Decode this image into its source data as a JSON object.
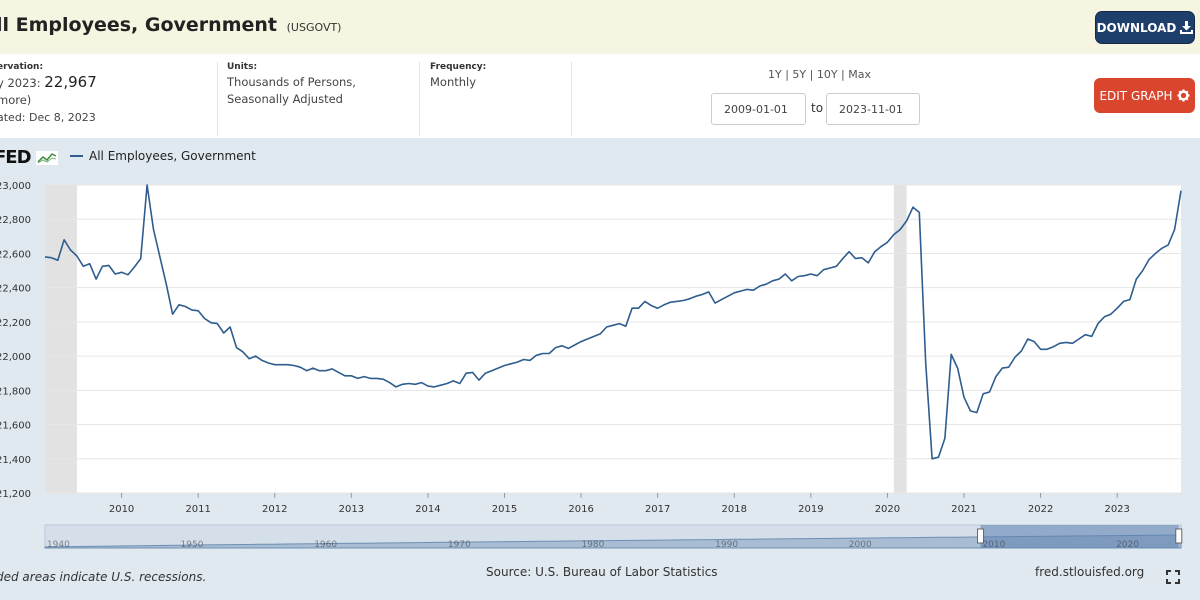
{
  "header": {
    "title": "ll Employees, Government",
    "series_id": "(USGOVT)",
    "download_label": "DOWNLOAD"
  },
  "meta": {
    "observation_label": "ervation:",
    "observation_date": "y 2023:",
    "observation_value": "22,967",
    "more_link": "more)",
    "updated": "ated: Dec 8, 2023",
    "units_label": "Units:",
    "units_line1": "Thousands of Persons,",
    "units_line2": "Seasonally Adjusted",
    "frequency_label": "Frequency:",
    "frequency_value": "Monthly"
  },
  "controls": {
    "range_1y": "1Y",
    "range_5y": "5Y",
    "range_10y": "10Y",
    "range_max": "Max",
    "start_date": "2009-01-01",
    "to_label": "to",
    "end_date": "2023-11-01",
    "edit_label": "EDIT GRAPH"
  },
  "logo_text": "FED",
  "legend_label": "All Employees, Government",
  "footer": {
    "recession_note": "ded areas indicate U.S. recessions.",
    "source": "Source: U.S. Bureau of Labor Statistics",
    "link": "fred.stlouisfed.org"
  },
  "colors": {
    "line": "#2e5d8e",
    "recession": "#e2e2e2",
    "download_button": "#1e3e6b",
    "edit_button": "#d9462d"
  },
  "chart_data": {
    "type": "line",
    "x_unit": "date",
    "y_ticks": [
      "23,000",
      "22,800",
      "22,600",
      "22,400",
      "22,200",
      "22,000",
      "21,800",
      "21,600",
      "21,400",
      "21,200"
    ],
    "x_ticks": [
      "2010",
      "2011",
      "2012",
      "2013",
      "2014",
      "2015",
      "2016",
      "2017",
      "2018",
      "2019",
      "2020",
      "2021",
      "2022",
      "2023"
    ],
    "ylim": [
      21200,
      23000
    ],
    "xlim": [
      "2009-01-01",
      "2023-11-01"
    ],
    "grid": true,
    "legend_position": "top-left",
    "recessions": [
      [
        "2009-01-01",
        "2009-06-01"
      ],
      [
        "2020-02-01",
        "2020-04-01"
      ]
    ],
    "navigator_ticks": [
      "1940",
      "1950",
      "1960",
      "1970",
      "1980",
      "1990",
      "2000",
      "2010",
      "2020"
    ],
    "series": [
      {
        "name": "All Employees, Government",
        "points": [
          [
            "2009-01-01",
            22580
          ],
          [
            "2009-02-01",
            22575
          ],
          [
            "2009-03-01",
            22560
          ],
          [
            "2009-04-01",
            22680
          ],
          [
            "2009-05-01",
            22620
          ],
          [
            "2009-06-01",
            22585
          ],
          [
            "2009-07-01",
            22525
          ],
          [
            "2009-08-01",
            22540
          ],
          [
            "2009-09-01",
            22450
          ],
          [
            "2009-10-01",
            22525
          ],
          [
            "2009-11-01",
            22530
          ],
          [
            "2009-12-01",
            22480
          ],
          [
            "2010-01-01",
            22490
          ],
          [
            "2010-02-01",
            22475
          ],
          [
            "2010-03-01",
            22520
          ],
          [
            "2010-04-01",
            22570
          ],
          [
            "2010-05-01",
            23000
          ],
          [
            "2010-06-01",
            22740
          ],
          [
            "2010-07-01",
            22580
          ],
          [
            "2010-08-01",
            22420
          ],
          [
            "2010-09-01",
            22245
          ],
          [
            "2010-10-01",
            22300
          ],
          [
            "2010-11-01",
            22290
          ],
          [
            "2010-12-01",
            22270
          ],
          [
            "2011-01-01",
            22265
          ],
          [
            "2011-02-01",
            22220
          ],
          [
            "2011-03-01",
            22195
          ],
          [
            "2011-04-01",
            22190
          ],
          [
            "2011-05-01",
            22135
          ],
          [
            "2011-06-01",
            22170
          ],
          [
            "2011-07-01",
            22050
          ],
          [
            "2011-08-01",
            22025
          ],
          [
            "2011-09-01",
            21985
          ],
          [
            "2011-10-01",
            22000
          ],
          [
            "2011-11-01",
            21975
          ],
          [
            "2011-12-01",
            21960
          ],
          [
            "2012-01-01",
            21950
          ],
          [
            "2012-02-01",
            21950
          ],
          [
            "2012-03-01",
            21950
          ],
          [
            "2012-04-01",
            21945
          ],
          [
            "2012-05-01",
            21935
          ],
          [
            "2012-06-01",
            21915
          ],
          [
            "2012-07-01",
            21930
          ],
          [
            "2012-08-01",
            21915
          ],
          [
            "2012-09-01",
            21915
          ],
          [
            "2012-10-01",
            21925
          ],
          [
            "2012-11-01",
            21905
          ],
          [
            "2012-12-01",
            21885
          ],
          [
            "2013-01-01",
            21885
          ],
          [
            "2013-02-01",
            21870
          ],
          [
            "2013-03-01",
            21880
          ],
          [
            "2013-04-01",
            21870
          ],
          [
            "2013-05-01",
            21870
          ],
          [
            "2013-06-01",
            21865
          ],
          [
            "2013-07-01",
            21845
          ],
          [
            "2013-08-01",
            21820
          ],
          [
            "2013-09-01",
            21835
          ],
          [
            "2013-10-01",
            21840
          ],
          [
            "2013-11-01",
            21835
          ],
          [
            "2013-12-01",
            21845
          ],
          [
            "2014-01-01",
            21825
          ],
          [
            "2014-02-01",
            21820
          ],
          [
            "2014-03-01",
            21830
          ],
          [
            "2014-04-01",
            21840
          ],
          [
            "2014-05-01",
            21855
          ],
          [
            "2014-06-01",
            21840
          ],
          [
            "2014-07-01",
            21900
          ],
          [
            "2014-08-01",
            21905
          ],
          [
            "2014-09-01",
            21860
          ],
          [
            "2014-10-01",
            21900
          ],
          [
            "2014-11-01",
            21915
          ],
          [
            "2014-12-01",
            21930
          ],
          [
            "2015-01-01",
            21945
          ],
          [
            "2015-02-01",
            21955
          ],
          [
            "2015-03-01",
            21965
          ],
          [
            "2015-04-01",
            21980
          ],
          [
            "2015-05-01",
            21975
          ],
          [
            "2015-06-01",
            22005
          ],
          [
            "2015-07-01",
            22015
          ],
          [
            "2015-08-01",
            22015
          ],
          [
            "2015-09-01",
            22050
          ],
          [
            "2015-10-01",
            22060
          ],
          [
            "2015-11-01",
            22045
          ],
          [
            "2015-12-01",
            22065
          ],
          [
            "2016-01-01",
            22085
          ],
          [
            "2016-02-01",
            22100
          ],
          [
            "2016-03-01",
            22115
          ],
          [
            "2016-04-01",
            22130
          ],
          [
            "2016-05-01",
            22170
          ],
          [
            "2016-06-01",
            22180
          ],
          [
            "2016-07-01",
            22190
          ],
          [
            "2016-08-01",
            22175
          ],
          [
            "2016-09-01",
            22280
          ],
          [
            "2016-10-01",
            22280
          ],
          [
            "2016-11-01",
            22320
          ],
          [
            "2016-12-01",
            22295
          ],
          [
            "2017-01-01",
            22280
          ],
          [
            "2017-02-01",
            22300
          ],
          [
            "2017-03-01",
            22315
          ],
          [
            "2017-04-01",
            22320
          ],
          [
            "2017-05-01",
            22325
          ],
          [
            "2017-06-01",
            22335
          ],
          [
            "2017-07-01",
            22350
          ],
          [
            "2017-08-01",
            22360
          ],
          [
            "2017-09-01",
            22375
          ],
          [
            "2017-10-01",
            22310
          ],
          [
            "2017-11-01",
            22330
          ],
          [
            "2017-12-01",
            22350
          ],
          [
            "2018-01-01",
            22370
          ],
          [
            "2018-02-01",
            22380
          ],
          [
            "2018-03-01",
            22390
          ],
          [
            "2018-04-01",
            22385
          ],
          [
            "2018-05-01",
            22410
          ],
          [
            "2018-06-01",
            22420
          ],
          [
            "2018-07-01",
            22440
          ],
          [
            "2018-08-01",
            22450
          ],
          [
            "2018-09-01",
            22480
          ],
          [
            "2018-10-01",
            22440
          ],
          [
            "2018-11-01",
            22465
          ],
          [
            "2018-12-01",
            22470
          ],
          [
            "2019-01-01",
            22480
          ],
          [
            "2019-02-01",
            22470
          ],
          [
            "2019-03-01",
            22505
          ],
          [
            "2019-04-01",
            22515
          ],
          [
            "2019-05-01",
            22525
          ],
          [
            "2019-06-01",
            22570
          ],
          [
            "2019-07-01",
            22610
          ],
          [
            "2019-08-01",
            22570
          ],
          [
            "2019-09-01",
            22575
          ],
          [
            "2019-10-01",
            22545
          ],
          [
            "2019-11-01",
            22610
          ],
          [
            "2019-12-01",
            22640
          ],
          [
            "2020-01-01",
            22665
          ],
          [
            "2020-02-01",
            22710
          ],
          [
            "2020-03-01",
            22740
          ],
          [
            "2020-04-01",
            22790
          ],
          [
            "2020-05-01",
            22870
          ],
          [
            "2020-06-01",
            22840
          ],
          [
            "2020-07-01",
            21960
          ],
          [
            "2020-08-01",
            21400
          ],
          [
            "2020-09-01",
            21410
          ],
          [
            "2020-10-01",
            21520
          ],
          [
            "2020-11-01",
            22010
          ],
          [
            "2020-12-01",
            21930
          ],
          [
            "2021-01-01",
            21760
          ],
          [
            "2021-02-01",
            21680
          ],
          [
            "2021-03-01",
            21670
          ],
          [
            "2021-04-01",
            21780
          ],
          [
            "2021-05-01",
            21790
          ],
          [
            "2021-06-01",
            21880
          ],
          [
            "2021-07-01",
            21930
          ],
          [
            "2021-08-01",
            21935
          ],
          [
            "2021-09-01",
            21995
          ],
          [
            "2021-10-01",
            22030
          ],
          [
            "2021-11-01",
            22100
          ],
          [
            "2021-12-01",
            22085
          ],
          [
            "2022-01-01",
            22040
          ],
          [
            "2022-02-01",
            22040
          ],
          [
            "2022-03-01",
            22055
          ],
          [
            "2022-04-01",
            22075
          ],
          [
            "2022-05-01",
            22080
          ],
          [
            "2022-06-01",
            22075
          ],
          [
            "2022-07-01",
            22100
          ],
          [
            "2022-08-01",
            22125
          ],
          [
            "2022-09-01",
            22115
          ],
          [
            "2022-10-01",
            22190
          ],
          [
            "2022-11-01",
            22230
          ],
          [
            "2022-12-01",
            22245
          ],
          [
            "2023-01-01",
            22280
          ],
          [
            "2023-02-01",
            22320
          ],
          [
            "2023-03-01",
            22330
          ],
          [
            "2023-04-01",
            22450
          ],
          [
            "2023-05-01",
            22500
          ],
          [
            "2023-06-01",
            22565
          ],
          [
            "2023-07-01",
            22600
          ],
          [
            "2023-08-01",
            22630
          ],
          [
            "2023-09-01",
            22650
          ],
          [
            "2023-10-01",
            22740
          ],
          [
            "2023-11-01",
            22967
          ]
        ]
      }
    ]
  }
}
